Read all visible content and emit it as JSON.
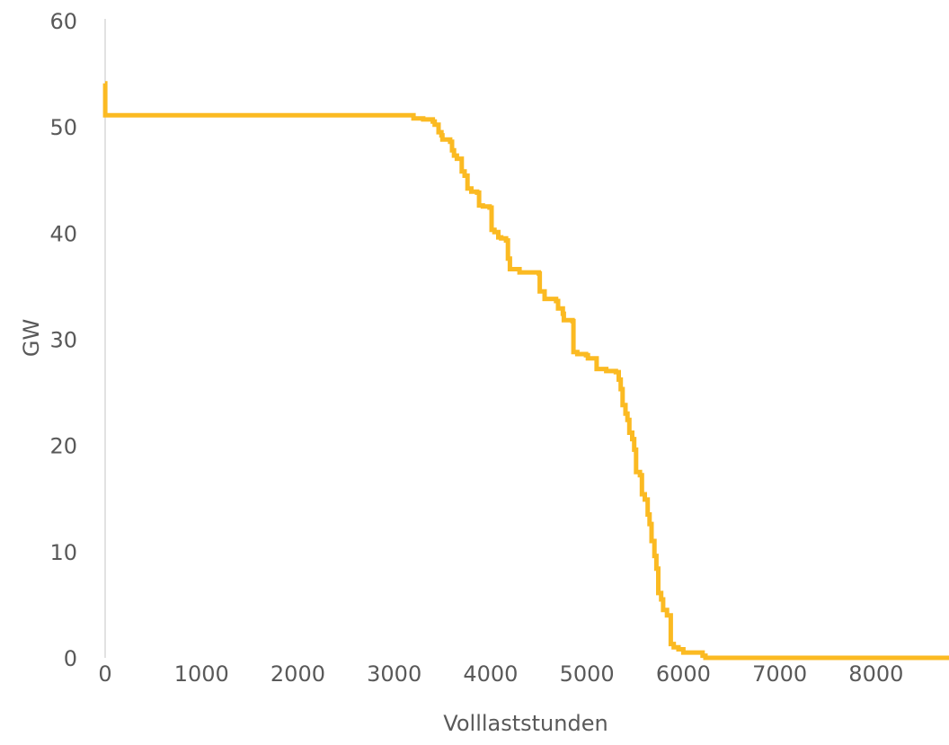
{
  "chart_data": {
    "type": "line",
    "title": "",
    "xlabel": "Volllaststunden",
    "ylabel": "GW",
    "xlim": [
      0,
      8760
    ],
    "ylim": [
      0,
      60
    ],
    "x_ticks": [
      0,
      1000,
      2000,
      3000,
      4000,
      5000,
      6000,
      7000,
      8000
    ],
    "y_ticks": [
      0,
      10,
      20,
      30,
      40,
      50,
      60
    ],
    "grid": false,
    "legend": "none",
    "series": [
      {
        "color": "#FBBA22",
        "line_style": "step",
        "points": [
          [
            0,
            54.1
          ],
          [
            1,
            51.1
          ],
          [
            3150,
            51.1
          ],
          [
            3200,
            50.8
          ],
          [
            3300,
            50.7
          ],
          [
            3400,
            50.5
          ],
          [
            3420,
            50.2
          ],
          [
            3460,
            49.5
          ],
          [
            3490,
            49.2
          ],
          [
            3500,
            48.8
          ],
          [
            3580,
            48.6
          ],
          [
            3600,
            47.8
          ],
          [
            3620,
            47.3
          ],
          [
            3650,
            47.0
          ],
          [
            3700,
            45.8
          ],
          [
            3730,
            45.4
          ],
          [
            3760,
            44.2
          ],
          [
            3800,
            43.9
          ],
          [
            3860,
            43.8
          ],
          [
            3880,
            42.6
          ],
          [
            3920,
            42.5
          ],
          [
            3990,
            42.4
          ],
          [
            4010,
            40.3
          ],
          [
            4040,
            40.1
          ],
          [
            4080,
            39.6
          ],
          [
            4110,
            39.5
          ],
          [
            4160,
            39.3
          ],
          [
            4180,
            37.6
          ],
          [
            4200,
            36.6
          ],
          [
            4300,
            36.3
          ],
          [
            4500,
            36.2
          ],
          [
            4510,
            34.5
          ],
          [
            4560,
            33.8
          ],
          [
            4680,
            33.6
          ],
          [
            4700,
            32.9
          ],
          [
            4750,
            32.4
          ],
          [
            4760,
            31.8
          ],
          [
            4850,
            31.7
          ],
          [
            4860,
            28.8
          ],
          [
            4900,
            28.6
          ],
          [
            4990,
            28.5
          ],
          [
            5010,
            28.2
          ],
          [
            5100,
            27.2
          ],
          [
            5200,
            27.0
          ],
          [
            5300,
            26.9
          ],
          [
            5330,
            26.2
          ],
          [
            5350,
            25.3
          ],
          [
            5370,
            23.8
          ],
          [
            5400,
            23.0
          ],
          [
            5420,
            22.4
          ],
          [
            5440,
            21.2
          ],
          [
            5470,
            20.6
          ],
          [
            5490,
            19.6
          ],
          [
            5510,
            17.5
          ],
          [
            5550,
            17.2
          ],
          [
            5570,
            15.4
          ],
          [
            5600,
            14.9
          ],
          [
            5630,
            13.5
          ],
          [
            5650,
            12.6
          ],
          [
            5670,
            11.0
          ],
          [
            5700,
            9.6
          ],
          [
            5720,
            8.4
          ],
          [
            5740,
            6.1
          ],
          [
            5770,
            5.5
          ],
          [
            5790,
            4.5
          ],
          [
            5830,
            4.0
          ],
          [
            5870,
            1.3
          ],
          [
            5900,
            1.0
          ],
          [
            5950,
            0.8
          ],
          [
            6000,
            0.5
          ],
          [
            6200,
            0.2
          ],
          [
            6230,
            0.0
          ],
          [
            8760,
            0.0
          ]
        ]
      }
    ]
  }
}
